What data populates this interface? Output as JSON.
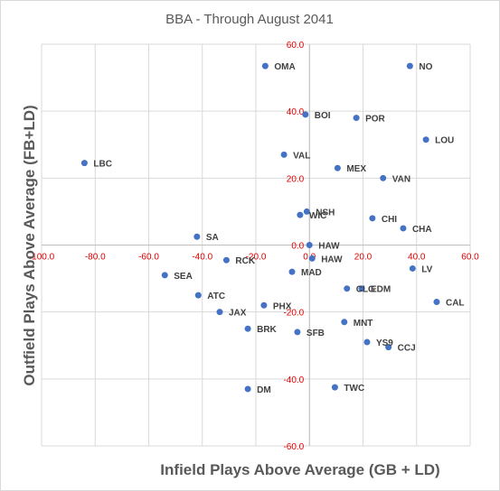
{
  "chart_data": {
    "type": "scatter",
    "title": "BBA - Through August 2041",
    "xlabel": "Infield Plays Above Average (GB + LD)",
    "ylabel": "Outfield Plays Above Average (FB+LD)",
    "xlim": [
      -100,
      60
    ],
    "ylim": [
      -60,
      60
    ],
    "x_ticks": [
      "-100.0",
      "-80.0",
      "-60.0",
      "-40.0",
      "-20.0",
      "0.0",
      "20.0",
      "40.0",
      "60.0"
    ],
    "y_ticks": [
      "60.0",
      "40.0",
      "20.0",
      "0.0",
      "-20.0",
      "-40.0",
      "-60.0"
    ],
    "grid": true,
    "marker_color": "#4472c4",
    "tick_color": "#e00000",
    "points": [
      {
        "label": "OMA",
        "x": -16.5,
        "y": 53.5
      },
      {
        "label": "NO",
        "x": 37.5,
        "y": 53.5
      },
      {
        "label": "BOI",
        "x": -1.5,
        "y": 39.0
      },
      {
        "label": "POR",
        "x": 17.5,
        "y": 38.0
      },
      {
        "label": "LOU",
        "x": 43.5,
        "y": 31.5
      },
      {
        "label": "VAL",
        "x": -9.5,
        "y": 27.0
      },
      {
        "label": "MEX",
        "x": 10.5,
        "y": 23.0
      },
      {
        "label": "VAN",
        "x": 27.5,
        "y": 20.0
      },
      {
        "label": "LBC",
        "x": -84.0,
        "y": 24.5
      },
      {
        "label": "NSH",
        "x": -1.0,
        "y": 10.0
      },
      {
        "label": "WIC",
        "x": -3.5,
        "y": 9.0
      },
      {
        "label": "CHI",
        "x": 23.5,
        "y": 8.0
      },
      {
        "label": "CHA",
        "x": 35.0,
        "y": 5.0
      },
      {
        "label": "SA",
        "x": -42.0,
        "y": 2.5
      },
      {
        "label": "HAW",
        "x": 0.0,
        "y": 0.0
      },
      {
        "label": "HAW",
        "x": 1.0,
        "y": -4.0
      },
      {
        "label": "RCK",
        "x": -31.0,
        "y": -4.5
      },
      {
        "label": "MAD",
        "x": -6.5,
        "y": -8.0
      },
      {
        "label": "LV",
        "x": 38.5,
        "y": -7.0
      },
      {
        "label": "SEA",
        "x": -54.0,
        "y": -9.0
      },
      {
        "label": "CLG",
        "x": 14.0,
        "y": -13.0
      },
      {
        "label": "EDM",
        "x": 19.5,
        "y": -13.0
      },
      {
        "label": "ATC",
        "x": -41.5,
        "y": -15.0
      },
      {
        "label": "CAL",
        "x": 47.5,
        "y": -17.0
      },
      {
        "label": "PHX",
        "x": -17.0,
        "y": -18.0
      },
      {
        "label": "JAX",
        "x": -33.5,
        "y": -20.0
      },
      {
        "label": "MNT",
        "x": 13.0,
        "y": -23.0
      },
      {
        "label": "BRK",
        "x": -23.0,
        "y": -25.0
      },
      {
        "label": "SFB",
        "x": -4.5,
        "y": -26.0
      },
      {
        "label": "YS9",
        "x": 21.5,
        "y": -29.0
      },
      {
        "label": "CCJ",
        "x": 29.5,
        "y": -30.5
      },
      {
        "label": "DM",
        "x": -23.0,
        "y": -43.0
      },
      {
        "label": "TWC",
        "x": 9.5,
        "y": -42.5
      }
    ]
  }
}
